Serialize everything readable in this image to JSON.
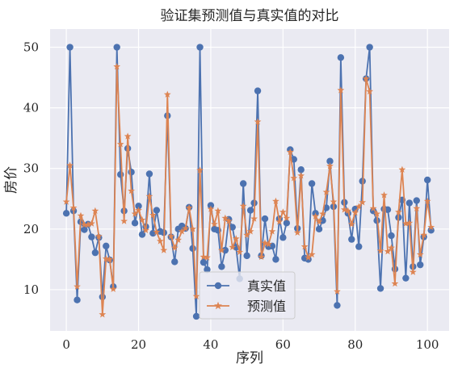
{
  "chart_data": {
    "type": "line",
    "title": "验证集预测值与真实值的对比",
    "xlabel": "序列",
    "ylabel": "房价",
    "xlim": [
      -4.5,
      106
    ],
    "ylim": [
      3.2,
      53
    ],
    "xticks": [
      0,
      20,
      40,
      60,
      80,
      100
    ],
    "yticks": [
      10,
      20,
      30,
      40,
      50
    ],
    "grid": true,
    "legend_position": "lower-center",
    "series": [
      {
        "name": "真实值",
        "color": "#4c72b0",
        "marker": "circle",
        "values": [
          22.6,
          50.0,
          23.0,
          8.3,
          21.2,
          19.9,
          20.8,
          18.7,
          16.1,
          18.6,
          8.8,
          17.2,
          14.9,
          10.5,
          50.0,
          29.0,
          23.0,
          33.3,
          29.4,
          21.0,
          23.8,
          19.1,
          20.4,
          29.1,
          19.3,
          23.1,
          19.6,
          19.4,
          38.7,
          18.7,
          14.6,
          20.0,
          20.5,
          20.1,
          23.6,
          16.8,
          5.6,
          50.0,
          14.5,
          13.3,
          23.9,
          20.0,
          19.8,
          13.8,
          16.5,
          21.6,
          20.3,
          17.0,
          11.8,
          27.5,
          15.6,
          23.1,
          24.3,
          42.8,
          15.6,
          21.7,
          17.1,
          17.2,
          15.0,
          21.7,
          18.6,
          21.0,
          33.1,
          31.5,
          20.1,
          29.8,
          15.2,
          15.0,
          27.5,
          22.6,
          20.0,
          21.4,
          23.5,
          31.2,
          23.7,
          7.4,
          48.3,
          24.4,
          22.6,
          18.3,
          23.3,
          17.1,
          27.9,
          44.8,
          50.0,
          23.0,
          21.4,
          10.2,
          23.3,
          23.2,
          18.9,
          13.4,
          21.9,
          24.8,
          11.9,
          24.3,
          13.8,
          24.7,
          14.1,
          18.7,
          28.1,
          19.8
        ]
      },
      {
        "name": "预测值",
        "color": "#dd8452",
        "marker": "star",
        "values": [
          24.5,
          30.5,
          23.5,
          10.5,
          22.2,
          20.7,
          20.7,
          20.9,
          23.0,
          18.8,
          5.9,
          15.1,
          15.0,
          10.1,
          46.8,
          34.0,
          21.3,
          35.3,
          26.3,
          22.5,
          23.1,
          21.5,
          19.8,
          25.4,
          22.3,
          19.5,
          18.0,
          16.5,
          42.2,
          18.8,
          16.9,
          18.2,
          19.6,
          20.1,
          23.5,
          20.0,
          8.9,
          29.7,
          15.4,
          15.3,
          23.3,
          20.8,
          23.0,
          16.5,
          21.8,
          21.3,
          17.0,
          18.4,
          16.2,
          23.8,
          19.0,
          19.6,
          21.7,
          37.7,
          15.4,
          17.7,
          17.5,
          19.6,
          24.6,
          21.2,
          22.8,
          21.8,
          32.7,
          28.4,
          19.4,
          28.8,
          17.1,
          15.3,
          15.8,
          22.1,
          21.2,
          22.5,
          26.1,
          30.4,
          24.5,
          9.7,
          42.9,
          23.2,
          23.0,
          20.8,
          22.7,
          23.7,
          24.4,
          44.8,
          42.7,
          23.4,
          22.5,
          16.4,
          25.6,
          16.3,
          16.9,
          11.0,
          22.8,
          29.8,
          20.9,
          21.0,
          12.9,
          23.4,
          15.8,
          19.0,
          24.6,
          20.3
        ]
      }
    ]
  }
}
